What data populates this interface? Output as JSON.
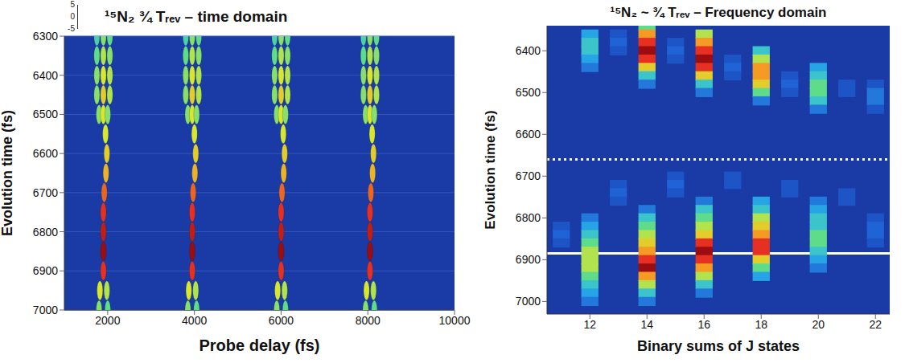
{
  "chart_data": [
    {
      "type": "surface",
      "title": "¹⁵N₂ ¾ Tᵣₑᵥ – time domain",
      "xlabel": "Probe delay (fs)",
      "ylabel": "Evolution time (fs)",
      "xlim": [
        1000,
        10000
      ],
      "xticks": [
        2000,
        4000,
        6000,
        8000,
        10000
      ],
      "ylim": [
        6300,
        7000
      ],
      "yticks": [
        6300,
        6400,
        6500,
        6600,
        6700,
        6800,
        6900,
        7000
      ],
      "zlim": [
        -5,
        5
      ],
      "zticks": [
        5,
        0,
        -5
      ],
      "grid": true,
      "points": [
        [
          1750,
          6300,
          -0.5
        ],
        [
          1900,
          6300,
          0.5
        ],
        [
          2050,
          6300,
          0
        ],
        [
          1750,
          6350,
          0
        ],
        [
          1900,
          6350,
          1
        ],
        [
          2050,
          6350,
          0.5
        ],
        [
          1750,
          6400,
          0.5
        ],
        [
          1900,
          6400,
          1.5
        ],
        [
          2050,
          6400,
          1
        ],
        [
          1750,
          6450,
          0.5
        ],
        [
          1900,
          6450,
          2
        ],
        [
          2050,
          6450,
          1
        ],
        [
          1800,
          6500,
          0.5
        ],
        [
          1900,
          6500,
          1.5
        ],
        [
          2000,
          6500,
          0.5
        ],
        [
          1950,
          6550,
          1.5
        ],
        [
          1980,
          6600,
          2
        ],
        [
          1960,
          6650,
          2.5
        ],
        [
          1920,
          6700,
          3.5
        ],
        [
          1900,
          6750,
          4
        ],
        [
          1900,
          6800,
          4.5
        ],
        [
          1900,
          6850,
          5
        ],
        [
          1900,
          6900,
          4
        ],
        [
          1820,
          6950,
          1.5
        ],
        [
          1980,
          6950,
          1
        ],
        [
          1800,
          7000,
          0.5
        ],
        [
          2000,
          7000,
          0
        ],
        [
          3800,
          6300,
          -0.5
        ],
        [
          3950,
          6300,
          0.5
        ],
        [
          4100,
          6300,
          0
        ],
        [
          3800,
          6350,
          0
        ],
        [
          3950,
          6350,
          1
        ],
        [
          4100,
          6350,
          0.5
        ],
        [
          3800,
          6400,
          0.5
        ],
        [
          3950,
          6400,
          1.5
        ],
        [
          4100,
          6400,
          1
        ],
        [
          3800,
          6450,
          0.5
        ],
        [
          3950,
          6450,
          2
        ],
        [
          4100,
          6450,
          1
        ],
        [
          3850,
          6500,
          0.5
        ],
        [
          3950,
          6500,
          1.5
        ],
        [
          4050,
          6500,
          0.5
        ],
        [
          4000,
          6550,
          1.5
        ],
        [
          4030,
          6600,
          2
        ],
        [
          4010,
          6650,
          2.5
        ],
        [
          3970,
          6700,
          3.5
        ],
        [
          3950,
          6750,
          4
        ],
        [
          3950,
          6800,
          4.5
        ],
        [
          3950,
          6850,
          5
        ],
        [
          3950,
          6900,
          4
        ],
        [
          3870,
          6950,
          1.5
        ],
        [
          4030,
          6950,
          1
        ],
        [
          3850,
          7000,
          0.5
        ],
        [
          4050,
          7000,
          0
        ],
        [
          5850,
          6300,
          -0.5
        ],
        [
          6000,
          6300,
          0.5
        ],
        [
          6150,
          6300,
          0
        ],
        [
          5850,
          6350,
          0
        ],
        [
          6000,
          6350,
          1
        ],
        [
          6150,
          6350,
          0.5
        ],
        [
          5850,
          6400,
          0.5
        ],
        [
          6000,
          6400,
          1.5
        ],
        [
          6150,
          6400,
          1
        ],
        [
          5850,
          6450,
          0.5
        ],
        [
          6000,
          6450,
          2
        ],
        [
          6150,
          6450,
          1
        ],
        [
          5900,
          6500,
          0.5
        ],
        [
          6000,
          6500,
          1.5
        ],
        [
          6100,
          6500,
          0.5
        ],
        [
          6050,
          6550,
          1.5
        ],
        [
          6080,
          6600,
          2
        ],
        [
          6060,
          6650,
          2.5
        ],
        [
          6020,
          6700,
          3.5
        ],
        [
          6000,
          6750,
          4
        ],
        [
          6000,
          6800,
          4.5
        ],
        [
          6000,
          6850,
          5
        ],
        [
          6000,
          6900,
          4
        ],
        [
          5920,
          6950,
          1.5
        ],
        [
          6080,
          6950,
          1
        ],
        [
          5900,
          7000,
          0.5
        ],
        [
          6100,
          7000,
          0
        ],
        [
          7900,
          6300,
          -0.5
        ],
        [
          8050,
          6300,
          0.5
        ],
        [
          8200,
          6300,
          0
        ],
        [
          7900,
          6350,
          0
        ],
        [
          8050,
          6350,
          1
        ],
        [
          8200,
          6350,
          0.5
        ],
        [
          7900,
          6400,
          0.5
        ],
        [
          8050,
          6400,
          1.5
        ],
        [
          8200,
          6400,
          1
        ],
        [
          7900,
          6450,
          0.5
        ],
        [
          8050,
          6450,
          2
        ],
        [
          8200,
          6450,
          1
        ],
        [
          7950,
          6500,
          0.5
        ],
        [
          8050,
          6500,
          1.5
        ],
        [
          8150,
          6500,
          0.5
        ],
        [
          8100,
          6550,
          1.5
        ],
        [
          8130,
          6600,
          2
        ],
        [
          8110,
          6650,
          2.5
        ],
        [
          8070,
          6700,
          3.5
        ],
        [
          8050,
          6750,
          4
        ],
        [
          8050,
          6800,
          4.5
        ],
        [
          8050,
          6850,
          5
        ],
        [
          8050,
          6900,
          4
        ],
        [
          7970,
          6950,
          1.5
        ],
        [
          8130,
          6950,
          1
        ],
        [
          7950,
          7000,
          0.5
        ],
        [
          8150,
          7000,
          0
        ]
      ]
    },
    {
      "type": "heatmap",
      "title": "¹⁵N₂ ~ ¾ Tᵣₑᵥ – Frequency domain",
      "xlabel": "Binary sums of J states",
      "ylabel": "Evolution time (fs)",
      "xlim": [
        10.5,
        22.5
      ],
      "xticks": [
        12,
        14,
        16,
        18,
        20,
        22
      ],
      "ylim": [
        6340,
        7030
      ],
      "yticks": [
        6400,
        6500,
        6600,
        6700,
        6800,
        6900,
        7000
      ],
      "grid": false,
      "hlines": [
        {
          "value": 6660,
          "line_style": "dotted",
          "color": "#ffffff"
        },
        {
          "value": 6885,
          "line_style": "solid",
          "color": "#ffffff"
        }
      ],
      "cells": [
        [
          12,
          6360,
          3
        ],
        [
          12,
          6380,
          4
        ],
        [
          12,
          6400,
          4
        ],
        [
          12,
          6420,
          3
        ],
        [
          12,
          6440,
          2
        ],
        [
          13,
          6360,
          1
        ],
        [
          13,
          6380,
          1.5
        ],
        [
          13,
          6400,
          1
        ],
        [
          14,
          6340,
          5
        ],
        [
          14,
          6360,
          8
        ],
        [
          14,
          6380,
          9
        ],
        [
          14,
          6400,
          10
        ],
        [
          14,
          6420,
          9
        ],
        [
          14,
          6440,
          7
        ],
        [
          14,
          6460,
          4
        ],
        [
          14,
          6480,
          2
        ],
        [
          15,
          6380,
          1
        ],
        [
          15,
          6400,
          1.5
        ],
        [
          15,
          6420,
          1
        ],
        [
          16,
          6360,
          6
        ],
        [
          16,
          6380,
          8
        ],
        [
          16,
          6400,
          9
        ],
        [
          16,
          6420,
          10
        ],
        [
          16,
          6440,
          9
        ],
        [
          16,
          6460,
          7
        ],
        [
          16,
          6480,
          4
        ],
        [
          16,
          6500,
          2
        ],
        [
          17,
          6420,
          1
        ],
        [
          17,
          6440,
          1.5
        ],
        [
          17,
          6460,
          1
        ],
        [
          18,
          6400,
          4
        ],
        [
          18,
          6420,
          6
        ],
        [
          18,
          6440,
          8
        ],
        [
          18,
          6460,
          8
        ],
        [
          18,
          6480,
          7
        ],
        [
          18,
          6500,
          5
        ],
        [
          18,
          6520,
          2
        ],
        [
          19,
          6460,
          1
        ],
        [
          19,
          6480,
          1.5
        ],
        [
          19,
          6500,
          1
        ],
        [
          20,
          6440,
          3
        ],
        [
          20,
          6460,
          4
        ],
        [
          20,
          6480,
          5
        ],
        [
          20,
          6500,
          5
        ],
        [
          20,
          6520,
          4
        ],
        [
          20,
          6540,
          2
        ],
        [
          21,
          6480,
          1
        ],
        [
          21,
          6500,
          1
        ],
        [
          22,
          6480,
          1
        ],
        [
          22,
          6500,
          2
        ],
        [
          22,
          6520,
          2
        ],
        [
          22,
          6540,
          1
        ],
        [
          11,
          6820,
          1
        ],
        [
          11,
          6840,
          1.5
        ],
        [
          11,
          6860,
          1
        ],
        [
          12,
          6800,
          2
        ],
        [
          12,
          6820,
          3
        ],
        [
          12,
          6840,
          4
        ],
        [
          12,
          6860,
          5
        ],
        [
          12,
          6880,
          6
        ],
        [
          12,
          6900,
          6
        ],
        [
          12,
          6920,
          6
        ],
        [
          12,
          6940,
          5
        ],
        [
          12,
          6960,
          4
        ],
        [
          12,
          6980,
          3
        ],
        [
          12,
          7000,
          2
        ],
        [
          13,
          6720,
          1
        ],
        [
          13,
          6740,
          1.5
        ],
        [
          13,
          6760,
          1
        ],
        [
          14,
          6780,
          2
        ],
        [
          14,
          6800,
          4
        ],
        [
          14,
          6820,
          5
        ],
        [
          14,
          6840,
          6
        ],
        [
          14,
          6860,
          7
        ],
        [
          14,
          6880,
          8
        ],
        [
          14,
          6900,
          9
        ],
        [
          14,
          6920,
          10
        ],
        [
          14,
          6940,
          8
        ],
        [
          14,
          6960,
          6
        ],
        [
          14,
          6980,
          4
        ],
        [
          14,
          7000,
          2
        ],
        [
          15,
          6700,
          1
        ],
        [
          15,
          6720,
          1.5
        ],
        [
          15,
          6740,
          1
        ],
        [
          16,
          6760,
          2
        ],
        [
          16,
          6780,
          4
        ],
        [
          16,
          6800,
          5
        ],
        [
          16,
          6820,
          6
        ],
        [
          16,
          6840,
          7
        ],
        [
          16,
          6860,
          9
        ],
        [
          16,
          6880,
          10
        ],
        [
          16,
          6900,
          9
        ],
        [
          16,
          6920,
          8
        ],
        [
          16,
          6940,
          6
        ],
        [
          16,
          6960,
          4
        ],
        [
          16,
          6980,
          2
        ],
        [
          17,
          6700,
          1
        ],
        [
          17,
          6720,
          1
        ],
        [
          18,
          6760,
          3
        ],
        [
          18,
          6780,
          4
        ],
        [
          18,
          6800,
          6
        ],
        [
          18,
          6820,
          7
        ],
        [
          18,
          6840,
          8
        ],
        [
          18,
          6860,
          9
        ],
        [
          18,
          6880,
          9
        ],
        [
          18,
          6900,
          7
        ],
        [
          18,
          6920,
          5
        ],
        [
          18,
          6940,
          3
        ],
        [
          19,
          6720,
          1
        ],
        [
          19,
          6740,
          1
        ],
        [
          20,
          6760,
          2
        ],
        [
          20,
          6780,
          3
        ],
        [
          20,
          6800,
          4
        ],
        [
          20,
          6820,
          4
        ],
        [
          20,
          6840,
          5
        ],
        [
          20,
          6860,
          5
        ],
        [
          20,
          6880,
          4
        ],
        [
          20,
          6900,
          3
        ],
        [
          20,
          6920,
          2
        ],
        [
          21,
          6740,
          1
        ],
        [
          21,
          6760,
          1
        ],
        [
          22,
          6800,
          1
        ],
        [
          22,
          6820,
          1.5
        ],
        [
          22,
          6840,
          1.5
        ],
        [
          22,
          6860,
          1
        ]
      ]
    }
  ]
}
